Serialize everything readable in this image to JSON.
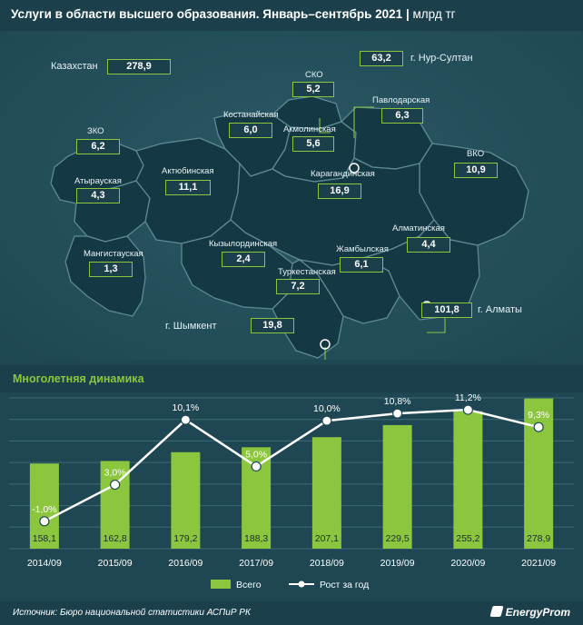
{
  "header": {
    "title": "Услуги в области высшего образования. Январь–сентябрь 2021",
    "unit": "млрд тг"
  },
  "map": {
    "country_label": "Казахстан",
    "country_value": "278,9",
    "regions": [
      {
        "name": "СКО",
        "value": "5,2"
      },
      {
        "name": "г. Нур-Султан",
        "value": "63,2"
      },
      {
        "name": "Павлодарская",
        "value": "6,3"
      },
      {
        "name": "Костанайская",
        "value": "6,0"
      },
      {
        "name": "Акмолинская",
        "value": "5,6"
      },
      {
        "name": "ЗКО",
        "value": "6,2"
      },
      {
        "name": "ВКО",
        "value": "10,9"
      },
      {
        "name": "Атырауская",
        "value": "4,3"
      },
      {
        "name": "Актюбинская",
        "value": "11,1"
      },
      {
        "name": "Карагандинская",
        "value": "16,9"
      },
      {
        "name": "Алматинская",
        "value": "4,4"
      },
      {
        "name": "Мангистауская",
        "value": "1,3"
      },
      {
        "name": "Кызылординская",
        "value": "2,4"
      },
      {
        "name": "Жамбылская",
        "value": "6,1"
      },
      {
        "name": "Туркестанская",
        "value": "7,2"
      },
      {
        "name": "г. Алматы",
        "value": "101,8"
      },
      {
        "name": "г. Шымкент",
        "value": "19,8"
      }
    ]
  },
  "chart_data": {
    "type": "bar",
    "title": "Многолетняя динамика",
    "categories": [
      "2014/09",
      "2015/09",
      "2016/09",
      "2017/09",
      "2018/09",
      "2019/09",
      "2020/09",
      "2021/09"
    ],
    "series": [
      {
        "name": "Всего",
        "type": "bar",
        "values": [
          158.1,
          162.8,
          179.2,
          188.3,
          207.1,
          229.5,
          255.2,
          278.9
        ],
        "labels": [
          "158,1",
          "162,8",
          "179,2",
          "188,3",
          "207,1",
          "229,5",
          "255,2",
          "278,9"
        ]
      },
      {
        "name": "Рост за год",
        "type": "line",
        "values": [
          -1.0,
          3.0,
          10.1,
          5.0,
          10.0,
          10.8,
          11.2,
          9.3
        ],
        "labels": [
          "-1,0%",
          "3,0%",
          "10,1%",
          "5,0%",
          "10,0%",
          "10,8%",
          "11,2%",
          "9,3%"
        ]
      }
    ],
    "y_bar_range": [
      0,
      280
    ],
    "y_line_range": [
      -4,
      12.5
    ],
    "grid": true,
    "legend_position": "bottom-center",
    "colors": {
      "bar": "#8cc63f",
      "line": "#ffffff",
      "grid": "#3d6a75",
      "background": "#1e4753"
    }
  },
  "footer": {
    "source": "Источник: Бюро национальной статистики АСПиР РК",
    "brand": "EnergyProm"
  }
}
